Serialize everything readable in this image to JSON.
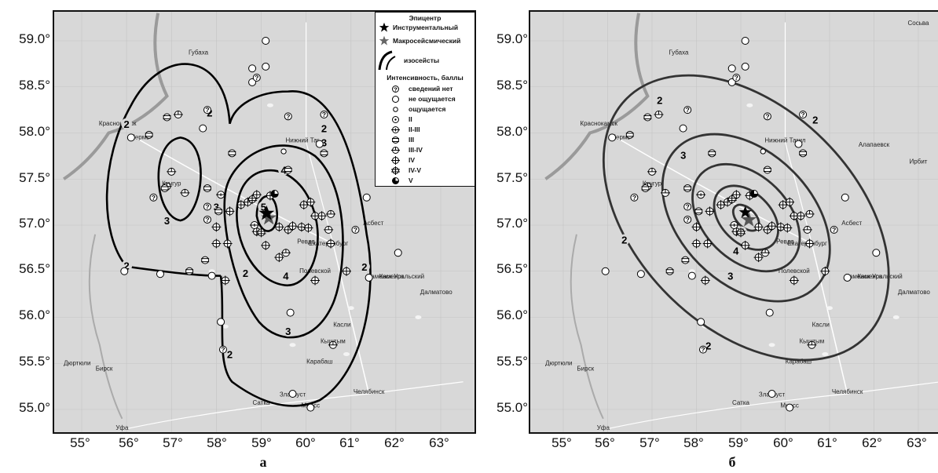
{
  "latitude_ticks": [
    "59.0°",
    "58.5°",
    "58.0°",
    "57.5°",
    "57.0°",
    "56.5°",
    "56.0°",
    "55.5°",
    "55.0°"
  ],
  "longitude_ticks": [
    "55°",
    "56°",
    "57°",
    "58°",
    "59°",
    "60°",
    "61°",
    "62°",
    "63°"
  ],
  "panel_labels": {
    "left": "а",
    "right": "б"
  },
  "legend": {
    "epicenter_heading": "Эпицентр",
    "instrumental": "Инструментальный",
    "macroseismic": "Макросейсмический",
    "isoseists_label": "изосейсты",
    "intensity_heading": "Интенсивность, баллы",
    "items": [
      {
        "icon": "question-circle-icon",
        "label": "сведений нет"
      },
      {
        "icon": "empty-circle-icon",
        "label": "не ощущается"
      },
      {
        "icon": "small-circle-icon",
        "label": "ощущается"
      },
      {
        "icon": "dot-circle-icon",
        "label": "II"
      },
      {
        "icon": "hbar-cross-circle-icon",
        "label": "II-III"
      },
      {
        "icon": "two-bar-circle-icon",
        "label": "III"
      },
      {
        "icon": "bar-cross-circle-icon",
        "label": "III-IV"
      },
      {
        "icon": "cross-circle-icon",
        "label": "IV"
      },
      {
        "icon": "double-cross-circle-icon",
        "label": "IV-V"
      },
      {
        "icon": "half-filled-circle-icon",
        "label": "V"
      }
    ]
  },
  "map_labels": [
    {
      "name": "Пермь",
      "lon": 56.3,
      "lat": 57.93
    },
    {
      "name": "Екатеринбург",
      "lon": 60.5,
      "lat": 56.78
    },
    {
      "name": "Челябинск",
      "lon": 61.4,
      "lat": 55.17
    },
    {
      "name": "Златоуст",
      "lon": 59.7,
      "lat": 55.14
    },
    {
      "name": "Миасс",
      "lon": 60.1,
      "lat": 55.02
    },
    {
      "name": "Уфа",
      "lon": 55.9,
      "lat": 54.78
    },
    {
      "name": "Асбест",
      "lon": 61.5,
      "lat": 57.0
    },
    {
      "name": "Каменск-Уральский",
      "lon": 62.0,
      "lat": 56.42
    },
    {
      "name": "Полевской",
      "lon": 60.2,
      "lat": 56.48
    },
    {
      "name": "Ревда",
      "lon": 60.0,
      "lat": 56.8
    },
    {
      "name": "Нижний Тагил",
      "lon": 60.0,
      "lat": 57.9
    },
    {
      "name": "Краснокамск",
      "lon": 55.8,
      "lat": 58.08
    },
    {
      "name": "Кунгур",
      "lon": 57.0,
      "lat": 57.43
    },
    {
      "name": "Сосьва",
      "lon": 63.0,
      "lat": 59.17
    },
    {
      "name": "Алапаевск",
      "lon": 62.0,
      "lat": 57.85
    },
    {
      "name": "Ирбит",
      "lon": 63.0,
      "lat": 57.67
    },
    {
      "name": "Кыштым",
      "lon": 60.6,
      "lat": 55.72
    },
    {
      "name": "Карабаш",
      "lon": 60.3,
      "lat": 55.5
    },
    {
      "name": "Сатка",
      "lon": 59.0,
      "lat": 55.05
    },
    {
      "name": "Бирск",
      "lon": 55.5,
      "lat": 55.42
    },
    {
      "name": "Дюртюли",
      "lon": 54.9,
      "lat": 55.48
    },
    {
      "name": "Касли",
      "lon": 60.8,
      "lat": 55.9
    },
    {
      "name": "Губаха",
      "lon": 57.6,
      "lat": 58.85
    },
    {
      "name": "Далматово",
      "lon": 62.9,
      "lat": 56.25
    },
    {
      "name": "Каменск",
      "lon": 61.9,
      "lat": 56.42
    }
  ],
  "epicenter": {
    "lon": 59.12,
    "lat": 57.08
  }
}
